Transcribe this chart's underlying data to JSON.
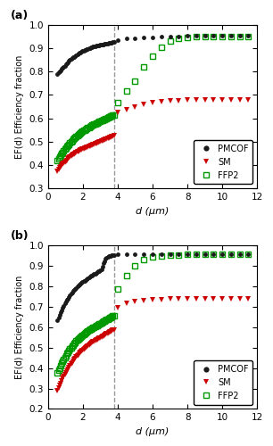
{
  "panel_a": {
    "title": "(a)",
    "ylabel": "EF(d) Efficiency fraction",
    "xlabel": "d (μm)",
    "xlim": [
      0,
      12
    ],
    "ylim": [
      0.3,
      1.0
    ],
    "yticks": [
      0.3,
      0.4,
      0.5,
      0.6,
      0.7,
      0.8,
      0.9,
      1.0
    ],
    "xticks": [
      0,
      2,
      4,
      6,
      8,
      10,
      12
    ],
    "dashed_line_x": 3.8,
    "pmcof_measured_x": [
      0.54,
      0.6,
      0.66,
      0.72,
      0.78,
      0.84,
      0.9,
      0.96,
      1.02,
      1.08,
      1.14,
      1.2,
      1.26,
      1.32,
      1.38,
      1.44,
      1.5,
      1.56,
      1.62,
      1.68,
      1.74,
      1.8,
      1.86,
      1.92,
      1.98,
      2.04,
      2.1,
      2.16,
      2.22,
      2.28,
      2.34,
      2.4,
      2.46,
      2.52,
      2.58,
      2.64,
      2.7,
      2.76,
      2.82,
      2.88,
      2.94,
      3.0,
      3.06,
      3.12,
      3.18,
      3.24,
      3.3,
      3.36,
      3.42,
      3.48,
      3.54,
      3.6,
      3.66,
      3.72,
      3.78
    ],
    "pmcof_measured_y": [
      0.79,
      0.795,
      0.8,
      0.805,
      0.81,
      0.815,
      0.82,
      0.825,
      0.83,
      0.836,
      0.84,
      0.845,
      0.848,
      0.852,
      0.857,
      0.86,
      0.863,
      0.866,
      0.87,
      0.873,
      0.876,
      0.879,
      0.882,
      0.885,
      0.887,
      0.889,
      0.89,
      0.892,
      0.894,
      0.896,
      0.898,
      0.9,
      0.902,
      0.904,
      0.906,
      0.907,
      0.908,
      0.909,
      0.91,
      0.911,
      0.912,
      0.913,
      0.914,
      0.915,
      0.916,
      0.917,
      0.918,
      0.919,
      0.92,
      0.921,
      0.922,
      0.923,
      0.924,
      0.925,
      0.926
    ],
    "pmcof_extrap_x": [
      4.0,
      4.5,
      5.0,
      5.5,
      6.0,
      6.5,
      7.0,
      7.5,
      8.0,
      8.5,
      9.0,
      9.5,
      10.0,
      10.5,
      11.0,
      11.5
    ],
    "pmcof_extrap_y": [
      0.935,
      0.94,
      0.943,
      0.945,
      0.947,
      0.948,
      0.949,
      0.95,
      0.951,
      0.951,
      0.951,
      0.951,
      0.951,
      0.951,
      0.951,
      0.951
    ],
    "sm_measured_x": [
      0.54,
      0.6,
      0.66,
      0.72,
      0.78,
      0.84,
      0.9,
      0.96,
      1.02,
      1.08,
      1.14,
      1.2,
      1.26,
      1.32,
      1.38,
      1.44,
      1.5,
      1.56,
      1.62,
      1.68,
      1.74,
      1.8,
      1.86,
      1.92,
      1.98,
      2.04,
      2.1,
      2.16,
      2.22,
      2.28,
      2.34,
      2.4,
      2.46,
      2.52,
      2.58,
      2.64,
      2.7,
      2.76,
      2.82,
      2.88,
      2.94,
      3.0,
      3.06,
      3.12,
      3.18,
      3.24,
      3.3,
      3.36,
      3.42,
      3.48,
      3.54,
      3.6,
      3.66,
      3.72,
      3.78
    ],
    "sm_measured_y": [
      0.375,
      0.381,
      0.387,
      0.393,
      0.399,
      0.404,
      0.408,
      0.413,
      0.417,
      0.421,
      0.425,
      0.429,
      0.433,
      0.437,
      0.441,
      0.444,
      0.447,
      0.45,
      0.453,
      0.456,
      0.458,
      0.461,
      0.463,
      0.465,
      0.467,
      0.469,
      0.471,
      0.473,
      0.475,
      0.477,
      0.479,
      0.481,
      0.483,
      0.485,
      0.487,
      0.489,
      0.491,
      0.492,
      0.494,
      0.496,
      0.498,
      0.5,
      0.502,
      0.504,
      0.506,
      0.508,
      0.51,
      0.512,
      0.514,
      0.516,
      0.518,
      0.52,
      0.521,
      0.522,
      0.524
    ],
    "sm_extrap_x": [
      4.0,
      4.5,
      5.0,
      5.5,
      6.0,
      6.5,
      7.0,
      7.5,
      8.0,
      8.5,
      9.0,
      9.5,
      10.0,
      10.5,
      11.0,
      11.5
    ],
    "sm_extrap_y": [
      0.625,
      0.638,
      0.648,
      0.658,
      0.665,
      0.67,
      0.673,
      0.675,
      0.677,
      0.678,
      0.679,
      0.679,
      0.679,
      0.679,
      0.679,
      0.679
    ],
    "ffp2_measured_x": [
      0.54,
      0.6,
      0.66,
      0.72,
      0.78,
      0.84,
      0.9,
      0.96,
      1.02,
      1.08,
      1.14,
      1.2,
      1.26,
      1.32,
      1.38,
      1.44,
      1.5,
      1.56,
      1.62,
      1.68,
      1.74,
      1.8,
      1.86,
      1.92,
      1.98,
      2.04,
      2.1,
      2.16,
      2.22,
      2.28,
      2.34,
      2.4,
      2.46,
      2.52,
      2.58,
      2.64,
      2.7,
      2.76,
      2.82,
      2.88,
      2.94,
      3.0,
      3.06,
      3.12,
      3.18,
      3.24,
      3.3,
      3.36,
      3.42,
      3.48,
      3.54,
      3.6,
      3.66,
      3.72,
      3.78
    ],
    "ffp2_measured_y": [
      0.42,
      0.428,
      0.435,
      0.442,
      0.449,
      0.455,
      0.461,
      0.467,
      0.473,
      0.479,
      0.484,
      0.489,
      0.494,
      0.499,
      0.504,
      0.509,
      0.513,
      0.518,
      0.522,
      0.526,
      0.53,
      0.534,
      0.537,
      0.541,
      0.544,
      0.547,
      0.55,
      0.553,
      0.556,
      0.559,
      0.562,
      0.565,
      0.568,
      0.57,
      0.573,
      0.575,
      0.577,
      0.579,
      0.581,
      0.583,
      0.585,
      0.587,
      0.589,
      0.591,
      0.593,
      0.595,
      0.598,
      0.6,
      0.602,
      0.604,
      0.606,
      0.608,
      0.61,
      0.612,
      0.614
    ],
    "ffp2_extrap_x": [
      4.0,
      4.5,
      5.0,
      5.5,
      6.0,
      6.5,
      7.0,
      7.5,
      8.0,
      8.5,
      9.0,
      9.5,
      10.0,
      10.5,
      11.0,
      11.5
    ],
    "ffp2_extrap_y": [
      0.665,
      0.715,
      0.76,
      0.82,
      0.865,
      0.905,
      0.93,
      0.94,
      0.945,
      0.948,
      0.95,
      0.95,
      0.95,
      0.95,
      0.95,
      0.95
    ]
  },
  "panel_b": {
    "title": "(b)",
    "ylabel": "EF(d) Efficiency fraction",
    "xlabel": "d (μm)",
    "xlim": [
      0,
      12
    ],
    "ylim": [
      0.2,
      1.0
    ],
    "yticks": [
      0.2,
      0.3,
      0.4,
      0.5,
      0.6,
      0.7,
      0.8,
      0.9,
      1.0
    ],
    "xticks": [
      0,
      2,
      4,
      6,
      8,
      10,
      12
    ],
    "dashed_line_x": 3.8,
    "pmcof_measured_x": [
      0.54,
      0.6,
      0.66,
      0.72,
      0.78,
      0.84,
      0.9,
      0.96,
      1.02,
      1.08,
      1.14,
      1.2,
      1.26,
      1.32,
      1.38,
      1.44,
      1.5,
      1.56,
      1.62,
      1.68,
      1.74,
      1.8,
      1.86,
      1.92,
      1.98,
      2.04,
      2.1,
      2.16,
      2.22,
      2.28,
      2.34,
      2.4,
      2.46,
      2.52,
      2.58,
      2.64,
      2.7,
      2.76,
      2.82,
      2.88,
      2.94,
      3.0,
      3.06,
      3.12,
      3.18,
      3.24,
      3.3,
      3.36,
      3.42,
      3.48,
      3.54,
      3.6,
      3.66,
      3.72,
      3.78
    ],
    "pmcof_measured_y": [
      0.635,
      0.648,
      0.66,
      0.672,
      0.683,
      0.694,
      0.704,
      0.714,
      0.723,
      0.732,
      0.74,
      0.748,
      0.755,
      0.762,
      0.769,
      0.775,
      0.781,
      0.787,
      0.792,
      0.797,
      0.802,
      0.807,
      0.811,
      0.815,
      0.819,
      0.823,
      0.827,
      0.831,
      0.835,
      0.839,
      0.842,
      0.846,
      0.849,
      0.852,
      0.856,
      0.859,
      0.862,
      0.865,
      0.868,
      0.871,
      0.874,
      0.877,
      0.88,
      0.895,
      0.91,
      0.922,
      0.932,
      0.938,
      0.942,
      0.945,
      0.947,
      0.949,
      0.95,
      0.951,
      0.952
    ],
    "pmcof_extrap_x": [
      4.0,
      4.5,
      5.0,
      5.5,
      6.0,
      6.5,
      7.0,
      7.5,
      8.0,
      8.5,
      9.0,
      9.5,
      10.0,
      10.5,
      11.0,
      11.5
    ],
    "pmcof_extrap_y": [
      0.955,
      0.956,
      0.957,
      0.957,
      0.957,
      0.957,
      0.957,
      0.957,
      0.957,
      0.957,
      0.957,
      0.957,
      0.957,
      0.957,
      0.957,
      0.957
    ],
    "sm_measured_x": [
      0.54,
      0.6,
      0.66,
      0.72,
      0.78,
      0.84,
      0.9,
      0.96,
      1.02,
      1.08,
      1.14,
      1.2,
      1.26,
      1.32,
      1.38,
      1.44,
      1.5,
      1.56,
      1.62,
      1.68,
      1.74,
      1.8,
      1.86,
      1.92,
      1.98,
      2.04,
      2.1,
      2.16,
      2.22,
      2.28,
      2.34,
      2.4,
      2.46,
      2.52,
      2.58,
      2.64,
      2.7,
      2.76,
      2.82,
      2.88,
      2.94,
      3.0,
      3.06,
      3.12,
      3.18,
      3.24,
      3.3,
      3.36,
      3.42,
      3.48,
      3.54,
      3.6,
      3.66,
      3.72,
      3.78
    ],
    "sm_measured_y": [
      0.29,
      0.302,
      0.314,
      0.326,
      0.337,
      0.348,
      0.358,
      0.368,
      0.377,
      0.386,
      0.395,
      0.403,
      0.411,
      0.419,
      0.426,
      0.433,
      0.44,
      0.447,
      0.453,
      0.459,
      0.465,
      0.47,
      0.475,
      0.48,
      0.485,
      0.49,
      0.495,
      0.499,
      0.503,
      0.507,
      0.511,
      0.515,
      0.519,
      0.523,
      0.527,
      0.53,
      0.533,
      0.536,
      0.539,
      0.542,
      0.545,
      0.548,
      0.551,
      0.554,
      0.557,
      0.56,
      0.563,
      0.566,
      0.569,
      0.572,
      0.575,
      0.578,
      0.581,
      0.584,
      0.587
    ],
    "sm_extrap_x": [
      4.0,
      4.5,
      5.0,
      5.5,
      6.0,
      6.5,
      7.0,
      7.5,
      8.0,
      8.5,
      9.0,
      9.5,
      10.0,
      10.5,
      11.0,
      11.5
    ],
    "sm_extrap_y": [
      0.695,
      0.715,
      0.725,
      0.73,
      0.733,
      0.735,
      0.736,
      0.737,
      0.737,
      0.737,
      0.737,
      0.737,
      0.737,
      0.737,
      0.737,
      0.737
    ],
    "ffp2_measured_x": [
      0.54,
      0.6,
      0.66,
      0.72,
      0.78,
      0.84,
      0.9,
      0.96,
      1.02,
      1.08,
      1.14,
      1.2,
      1.26,
      1.32,
      1.38,
      1.44,
      1.5,
      1.56,
      1.62,
      1.68,
      1.74,
      1.8,
      1.86,
      1.92,
      1.98,
      2.04,
      2.1,
      2.16,
      2.22,
      2.28,
      2.34,
      2.4,
      2.46,
      2.52,
      2.58,
      2.64,
      2.7,
      2.76,
      2.82,
      2.88,
      2.94,
      3.0,
      3.06,
      3.12,
      3.18,
      3.24,
      3.3,
      3.36,
      3.42,
      3.48,
      3.54,
      3.6,
      3.66,
      3.72,
      3.78
    ],
    "ffp2_measured_y": [
      0.375,
      0.388,
      0.4,
      0.412,
      0.423,
      0.433,
      0.443,
      0.452,
      0.461,
      0.47,
      0.478,
      0.486,
      0.493,
      0.5,
      0.507,
      0.513,
      0.519,
      0.525,
      0.531,
      0.536,
      0.541,
      0.546,
      0.551,
      0.555,
      0.56,
      0.564,
      0.568,
      0.572,
      0.576,
      0.58,
      0.584,
      0.588,
      0.591,
      0.594,
      0.597,
      0.6,
      0.603,
      0.606,
      0.609,
      0.612,
      0.615,
      0.618,
      0.621,
      0.624,
      0.627,
      0.63,
      0.633,
      0.636,
      0.639,
      0.642,
      0.645,
      0.648,
      0.651,
      0.654,
      0.657
    ],
    "ffp2_extrap_x": [
      4.0,
      4.5,
      5.0,
      5.5,
      6.0,
      6.5,
      7.0,
      7.5,
      8.0,
      8.5,
      9.0,
      9.5,
      10.0,
      10.5,
      11.0,
      11.5
    ],
    "ffp2_extrap_y": [
      0.785,
      0.853,
      0.9,
      0.928,
      0.942,
      0.948,
      0.951,
      0.953,
      0.954,
      0.955,
      0.955,
      0.955,
      0.955,
      0.955,
      0.955,
      0.955
    ]
  },
  "colors": {
    "pmcof": "#1a1a1a",
    "sm": "#cc0000",
    "ffp2": "#009900",
    "dashed_line": "#999999"
  },
  "background_color": "#f5f5f5"
}
